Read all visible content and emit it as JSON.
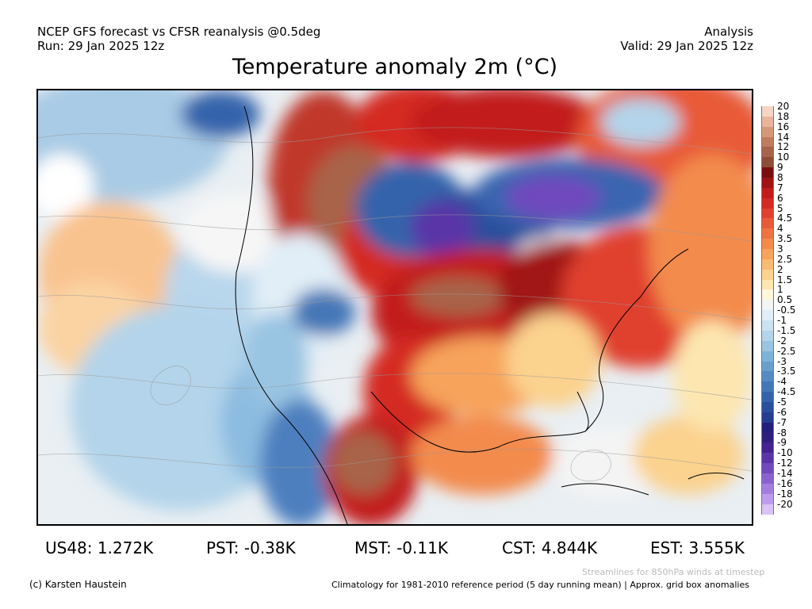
{
  "header": {
    "line1_left": "NCEP GFS forecast vs CFSR reanalysis @0.5deg",
    "line2_left": "Run: 29 Jan 2025 12z",
    "line1_right": "Analysis",
    "line2_right": "Valid: 29 Jan 2025 12z"
  },
  "title": "Temperature anomaly 2m (°C)",
  "colorbar": {
    "labels": [
      "20",
      "18",
      "16",
      "14",
      "12",
      "10",
      "9",
      "8",
      "7",
      "6",
      "5",
      "4.5",
      "4",
      "3.5",
      "3",
      "2.5",
      "2",
      "1.5",
      "1",
      "0.5",
      "-0.5",
      "-1",
      "-1.5",
      "-2",
      "-2.5",
      "-3",
      "-3.5",
      "-4",
      "-4.5",
      "-5",
      "-6",
      "-7",
      "-8",
      "-9",
      "-10",
      "-12",
      "-14",
      "-16",
      "-18",
      "-20"
    ],
    "colors": [
      "#f6d5c6",
      "#e9b49e",
      "#d59878",
      "#bf7c5f",
      "#a8644a",
      "#8d4e39",
      "#7a0d0d",
      "#a11212",
      "#c21b1b",
      "#d42a24",
      "#e0402f",
      "#e85a38",
      "#ee7340",
      "#f38b4d",
      "#f7a35c",
      "#f9bb73",
      "#fbd28e",
      "#fde6b0",
      "#fff6dc",
      "#f4f4f4",
      "#e1eef7",
      "#cbe2f1",
      "#b3d4ea",
      "#99c4e2",
      "#7fb2d8",
      "#6a9fcd",
      "#568bc2",
      "#4477b7",
      "#3563ab",
      "#2a4f9c",
      "#243e8f",
      "#241f7c",
      "#2f1f7c",
      "#43238f",
      "#5a34a8",
      "#7049be",
      "#8a62d0",
      "#a37ee0",
      "#bd9ced",
      "#d9c2f6"
    ]
  },
  "stats": [
    {
      "label": "US48: 1.272K"
    },
    {
      "label": "PST: -0.38K"
    },
    {
      "label": "MST: -0.11K"
    },
    {
      "label": "CST: 4.844K"
    },
    {
      "label": "EST: 3.555K"
    }
  ],
  "footer": {
    "credit": "(c) Karsten Haustein",
    "streamlines_note": "Streamlines for 850hPa winds at timestep",
    "climatology_note": "Climatology for 1981-2010 reference period (5 day running mean) | Approx. grid box anomalies"
  }
}
